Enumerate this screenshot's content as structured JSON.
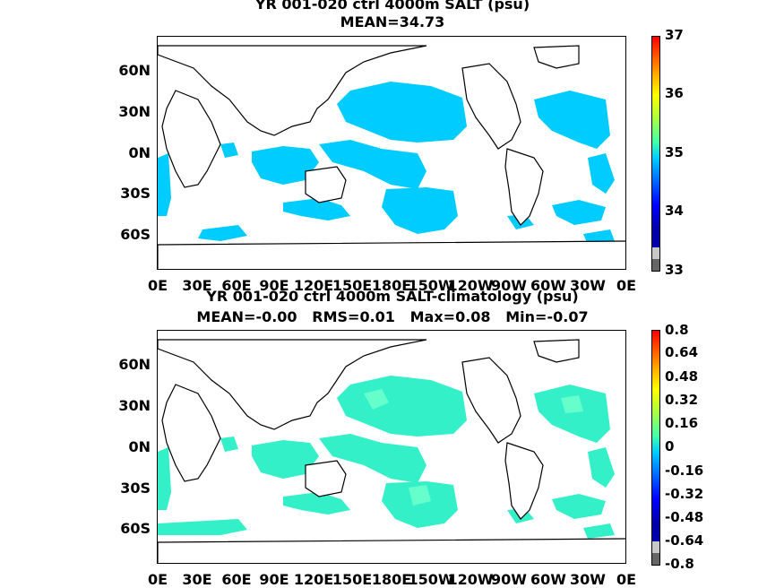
{
  "panel1": {
    "title_line1": "YR 001-020 ctrl 4000m SALT (psu)",
    "title_line2": "MEAN=34.73",
    "colorbar_labels": [
      "37",
      "36",
      "35",
      "34",
      "33"
    ],
    "field_color": "#00ccff"
  },
  "panel2": {
    "title_line1": "YR 001-020 ctrl 4000m SALT-climatology (psu)",
    "title_line2": "MEAN=-0.00   RMS=0.01   Max=0.08   Min=-0.07",
    "colorbar_labels": [
      "0.8",
      "0.64",
      "0.48",
      "0.32",
      "0.16",
      "0",
      "-0.16",
      "-0.32",
      "-0.48",
      "-0.64",
      "-0.8"
    ],
    "field_color": "#33f0c8"
  },
  "lat_labels": [
    "60N",
    "30N",
    "0N",
    "30S",
    "60S"
  ],
  "lon_labels": [
    "0E",
    "30E",
    "60E",
    "90E",
    "120E",
    "150E",
    "180E",
    "150W",
    "120W",
    "90W",
    "60W",
    "30W",
    "0E"
  ],
  "colorbar_colors": [
    "#ff0000",
    "#ff5500",
    "#ffaa00",
    "#ffff00",
    "#aaff44",
    "#44ffaa",
    "#00ccff",
    "#0066ff",
    "#0000ff",
    "#0000aa",
    "#c8c8c8",
    "#666666"
  ]
}
